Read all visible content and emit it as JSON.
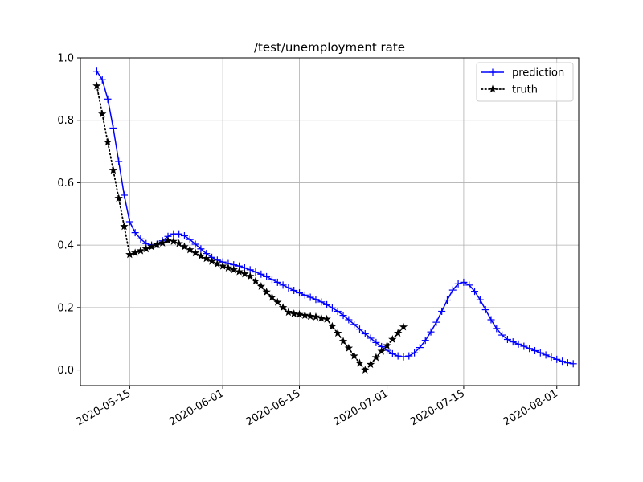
{
  "chart_data": {
    "type": "line",
    "title": "/test/unemployment rate",
    "xlabel": "",
    "ylabel": "",
    "x_type": "date",
    "xlim": [
      "2020-05-06",
      "2020-08-05"
    ],
    "ylim": [
      -0.05,
      1.0
    ],
    "x_ticks": [
      "2020-05-15",
      "2020-06-01",
      "2020-06-15",
      "2020-07-01",
      "2020-07-15",
      "2020-08-01"
    ],
    "y_ticks": [
      0.0,
      0.2,
      0.4,
      0.6,
      0.8,
      1.0
    ],
    "y_tick_labels": [
      "0.0",
      "0.2",
      "0.4",
      "0.6",
      "0.8",
      "1.0"
    ],
    "grid": true,
    "legend_position": "top-right",
    "series": [
      {
        "name": "prediction",
        "color": "#0000ff",
        "line_style": "solid",
        "marker": "plus",
        "points": [
          [
            "2020-05-09",
            0.957
          ],
          [
            "2020-05-10",
            0.93
          ],
          [
            "2020-05-11",
            0.868
          ],
          [
            "2020-05-12",
            0.775
          ],
          [
            "2020-05-13",
            0.668
          ],
          [
            "2020-05-14",
            0.56
          ],
          [
            "2020-05-15",
            0.475
          ],
          [
            "2020-05-16",
            0.44
          ],
          [
            "2020-05-17",
            0.42
          ],
          [
            "2020-05-18",
            0.405
          ],
          [
            "2020-05-19",
            0.4
          ],
          [
            "2020-05-20",
            0.403
          ],
          [
            "2020-05-21",
            0.414
          ],
          [
            "2020-05-22",
            0.428
          ],
          [
            "2020-05-23",
            0.436
          ],
          [
            "2020-05-24",
            0.436
          ],
          [
            "2020-05-25",
            0.43
          ],
          [
            "2020-05-26",
            0.418
          ],
          [
            "2020-05-27",
            0.403
          ],
          [
            "2020-05-28",
            0.388
          ],
          [
            "2020-05-29",
            0.373
          ],
          [
            "2020-05-30",
            0.361
          ],
          [
            "2020-05-31",
            0.352
          ],
          [
            "2020-06-01",
            0.346
          ],
          [
            "2020-06-02",
            0.341
          ],
          [
            "2020-06-03",
            0.337
          ],
          [
            "2020-06-04",
            0.333
          ],
          [
            "2020-06-05",
            0.327
          ],
          [
            "2020-06-06",
            0.321
          ],
          [
            "2020-06-07",
            0.314
          ],
          [
            "2020-06-08",
            0.307
          ],
          [
            "2020-06-09",
            0.299
          ],
          [
            "2020-06-10",
            0.29
          ],
          [
            "2020-06-11",
            0.281
          ],
          [
            "2020-06-12",
            0.272
          ],
          [
            "2020-06-13",
            0.263
          ],
          [
            "2020-06-14",
            0.255
          ],
          [
            "2020-06-15",
            0.247
          ],
          [
            "2020-06-16",
            0.24
          ],
          [
            "2020-06-17",
            0.233
          ],
          [
            "2020-06-18",
            0.226
          ],
          [
            "2020-06-19",
            0.218
          ],
          [
            "2020-06-20",
            0.209
          ],
          [
            "2020-06-21",
            0.199
          ],
          [
            "2020-06-22",
            0.188
          ],
          [
            "2020-06-23",
            0.175
          ],
          [
            "2020-06-24",
            0.161
          ],
          [
            "2020-06-25",
            0.146
          ],
          [
            "2020-06-26",
            0.131
          ],
          [
            "2020-06-27",
            0.116
          ],
          [
            "2020-06-28",
            0.102
          ],
          [
            "2020-06-29",
            0.088
          ],
          [
            "2020-06-30",
            0.075
          ],
          [
            "2020-07-01",
            0.063
          ],
          [
            "2020-07-02",
            0.052
          ],
          [
            "2020-07-03",
            0.045
          ],
          [
            "2020-07-04",
            0.042
          ],
          [
            "2020-07-05",
            0.045
          ],
          [
            "2020-07-06",
            0.055
          ],
          [
            "2020-07-07",
            0.072
          ],
          [
            "2020-07-08",
            0.095
          ],
          [
            "2020-07-09",
            0.122
          ],
          [
            "2020-07-10",
            0.153
          ],
          [
            "2020-07-11",
            0.188
          ],
          [
            "2020-07-12",
            0.224
          ],
          [
            "2020-07-13",
            0.256
          ],
          [
            "2020-07-14",
            0.276
          ],
          [
            "2020-07-15",
            0.281
          ],
          [
            "2020-07-16",
            0.272
          ],
          [
            "2020-07-17",
            0.252
          ],
          [
            "2020-07-18",
            0.225
          ],
          [
            "2020-07-19",
            0.193
          ],
          [
            "2020-07-20",
            0.161
          ],
          [
            "2020-07-21",
            0.133
          ],
          [
            "2020-07-22",
            0.112
          ],
          [
            "2020-07-23",
            0.098
          ],
          [
            "2020-07-24",
            0.09
          ],
          [
            "2020-07-25",
            0.083
          ],
          [
            "2020-07-26",
            0.076
          ],
          [
            "2020-07-27",
            0.069
          ],
          [
            "2020-07-28",
            0.062
          ],
          [
            "2020-07-29",
            0.055
          ],
          [
            "2020-07-30",
            0.048
          ],
          [
            "2020-07-31",
            0.041
          ],
          [
            "2020-08-01",
            0.034
          ],
          [
            "2020-08-02",
            0.028
          ],
          [
            "2020-08-03",
            0.023
          ],
          [
            "2020-08-04",
            0.02
          ]
        ]
      },
      {
        "name": "truth",
        "color": "#000000",
        "line_style": "dotted",
        "marker": "star",
        "points": [
          [
            "2020-05-09",
            0.91
          ],
          [
            "2020-05-10",
            0.82
          ],
          [
            "2020-05-11",
            0.73
          ],
          [
            "2020-05-12",
            0.64
          ],
          [
            "2020-05-13",
            0.55
          ],
          [
            "2020-05-14",
            0.46
          ],
          [
            "2020-05-15",
            0.37
          ],
          [
            "2020-05-16",
            0.375
          ],
          [
            "2020-05-17",
            0.382
          ],
          [
            "2020-05-18",
            0.388
          ],
          [
            "2020-05-19",
            0.395
          ],
          [
            "2020-05-20",
            0.401
          ],
          [
            "2020-05-21",
            0.407
          ],
          [
            "2020-05-22",
            0.415
          ],
          [
            "2020-05-23",
            0.412
          ],
          [
            "2020-05-24",
            0.405
          ],
          [
            "2020-05-25",
            0.395
          ],
          [
            "2020-05-26",
            0.385
          ],
          [
            "2020-05-27",
            0.375
          ],
          [
            "2020-05-28",
            0.365
          ],
          [
            "2020-05-29",
            0.357
          ],
          [
            "2020-05-30",
            0.348
          ],
          [
            "2020-05-31",
            0.34
          ],
          [
            "2020-06-01",
            0.333
          ],
          [
            "2020-06-02",
            0.327
          ],
          [
            "2020-06-03",
            0.321
          ],
          [
            "2020-06-04",
            0.315
          ],
          [
            "2020-06-05",
            0.308
          ],
          [
            "2020-06-06",
            0.3
          ],
          [
            "2020-06-07",
            0.285
          ],
          [
            "2020-06-08",
            0.268
          ],
          [
            "2020-06-09",
            0.25
          ],
          [
            "2020-06-10",
            0.233
          ],
          [
            "2020-06-11",
            0.217
          ],
          [
            "2020-06-12",
            0.2
          ],
          [
            "2020-06-13",
            0.185
          ],
          [
            "2020-06-14",
            0.18
          ],
          [
            "2020-06-15",
            0.178
          ],
          [
            "2020-06-16",
            0.175
          ],
          [
            "2020-06-17",
            0.172
          ],
          [
            "2020-06-18",
            0.17
          ],
          [
            "2020-06-19",
            0.166
          ],
          [
            "2020-06-20",
            0.163
          ],
          [
            "2020-06-21",
            0.14
          ],
          [
            "2020-06-22",
            0.118
          ],
          [
            "2020-06-23",
            0.092
          ],
          [
            "2020-06-24",
            0.07
          ],
          [
            "2020-06-25",
            0.045
          ],
          [
            "2020-06-26",
            0.022
          ],
          [
            "2020-06-27",
            0.0
          ],
          [
            "2020-06-28",
            0.018
          ],
          [
            "2020-06-29",
            0.04
          ],
          [
            "2020-06-30",
            0.06
          ],
          [
            "2020-07-01",
            0.078
          ],
          [
            "2020-07-02",
            0.098
          ],
          [
            "2020-07-03",
            0.118
          ],
          [
            "2020-07-04",
            0.138
          ]
        ]
      }
    ]
  }
}
